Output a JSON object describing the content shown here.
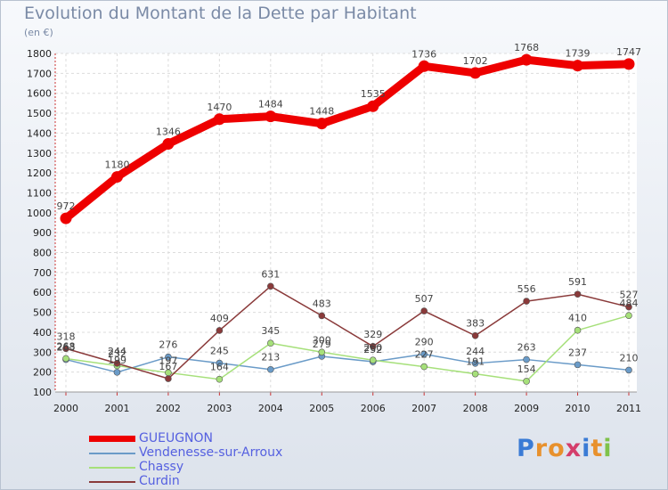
{
  "title": "Evolution du Montant de la Dette par Habitant",
  "subtitle": "(en €)",
  "logo": {
    "letters": [
      "P",
      "r",
      "o",
      "x",
      "i",
      "t",
      "i"
    ],
    "colors": [
      "#3a7bd5",
      "#e8912d",
      "#e8912d",
      "#d43d6b",
      "#3a7bd5",
      "#e8912d",
      "#7fc24a"
    ]
  },
  "chart_data": {
    "type": "line",
    "x": [
      "2000",
      "2001",
      "2002",
      "2003",
      "2004",
      "2005",
      "2006",
      "2007",
      "2008",
      "2009",
      "2010",
      "2011"
    ],
    "ylim": [
      100,
      1800
    ],
    "yticks": [
      "100",
      "200",
      "300",
      "400",
      "500",
      "600",
      "700",
      "800",
      "900",
      "1000",
      "1100",
      "1200",
      "1300",
      "1400",
      "1500",
      "1600",
      "1700",
      "1800"
    ],
    "grid": true,
    "legend": "bottom-left",
    "series": [
      {
        "name": "GUEUGNON",
        "color": "#ee0000",
        "width": 9,
        "values": [
          972,
          1180,
          1346,
          1470,
          1484,
          1448,
          1535,
          1736,
          1702,
          1768,
          1739,
          1747
        ],
        "labels": [
          "972",
          "1180",
          "1346",
          "1470",
          "1484",
          "1448",
          "1535",
          "1736",
          "1702",
          "1768",
          "1739",
          "1747"
        ]
      },
      {
        "name": "Vendenesse-sur-Arroux",
        "color": "#6a9bc8",
        "width": 1.5,
        "values": [
          263,
          199,
          276,
          245,
          213,
          279,
          252,
          290,
          244,
          263,
          237,
          210
        ],
        "labels": [
          "263",
          "199",
          "276",
          "245",
          "213",
          "279",
          "252",
          "290",
          "244",
          "263",
          "237",
          "210"
        ]
      },
      {
        "name": "Chassy",
        "color": "#a6e07a",
        "width": 1.5,
        "values": [
          268,
          232,
          197,
          164,
          345,
          300,
          260,
          227,
          191,
          154,
          410,
          484
        ],
        "labels": [
          "268",
          "232",
          "197",
          "164",
          "345",
          "300",
          "260",
          "227",
          "191",
          "154",
          "410",
          "484"
        ]
      },
      {
        "name": "Curdin",
        "color": "#8a3a3a",
        "width": 1.5,
        "values": [
          318,
          244,
          167,
          409,
          631,
          483,
          329,
          507,
          383,
          556,
          591,
          527
        ],
        "labels": [
          "318",
          "244",
          "167",
          "409",
          "631",
          "483",
          "329",
          "507",
          "383",
          "556",
          "591",
          "527"
        ]
      }
    ]
  }
}
